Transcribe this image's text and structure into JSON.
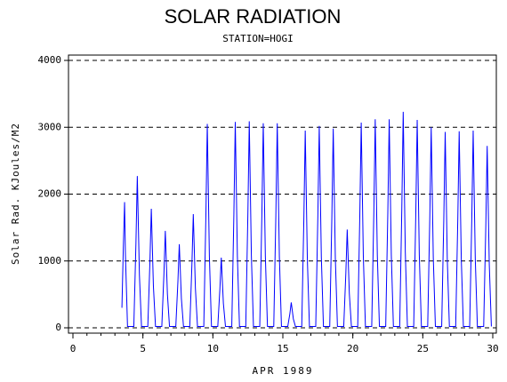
{
  "chart_data": {
    "type": "line",
    "title": "SOLAR RADIATION",
    "subtitle": "STATION=HOGI",
    "x_label": "APR 1989",
    "y_label": "Solar Rad. KJoules/M2",
    "color": "#0000ff",
    "grid": true,
    "xlim": [
      0,
      30
    ],
    "xticks": [
      0,
      5,
      10,
      15,
      20,
      25,
      30
    ],
    "ylim": [
      0,
      4000
    ],
    "yticks": [
      0,
      1000,
      2000,
      3000,
      4000
    ],
    "x": [
      3.5,
      3.6,
      3.69,
      3.75,
      3.9,
      4.35,
      4.5,
      4.6,
      4.75,
      4.9,
      5.35,
      5.5,
      5.6,
      5.75,
      5.9,
      6.35,
      6.5,
      6.6,
      6.75,
      6.9,
      7.35,
      7.5,
      7.6,
      7.75,
      7.9,
      8.35,
      8.5,
      8.6,
      8.75,
      8.9,
      9.35,
      9.5,
      9.6,
      9.75,
      9.9,
      10.35,
      10.5,
      10.6,
      10.75,
      10.9,
      11.35,
      11.5,
      11.6,
      11.75,
      11.9,
      12.35,
      12.5,
      12.6,
      12.75,
      12.9,
      13.35,
      13.5,
      13.6,
      13.75,
      13.9,
      14.35,
      14.5,
      14.6,
      14.75,
      14.9,
      15.35,
      15.5,
      15.6,
      15.75,
      15.9,
      16.35,
      16.5,
      16.6,
      16.75,
      16.9,
      17.35,
      17.5,
      17.6,
      17.75,
      17.9,
      18.35,
      18.5,
      18.6,
      18.75,
      18.9,
      19.35,
      19.5,
      19.6,
      19.75,
      19.9,
      20.35,
      20.5,
      20.6,
      20.75,
      20.9,
      21.35,
      21.5,
      21.6,
      21.75,
      21.9,
      22.35,
      22.5,
      22.6,
      22.75,
      22.9,
      23.35,
      23.5,
      23.6,
      23.75,
      23.9,
      24.35,
      24.5,
      24.6,
      24.75,
      24.9,
      25.35,
      25.5,
      25.6,
      25.75,
      25.9,
      26.35,
      26.5,
      26.6,
      26.75,
      26.9,
      27.35,
      27.5,
      27.6,
      27.75,
      27.9,
      28.35,
      28.5,
      28.6,
      28.75,
      28.9,
      29.35,
      29.5,
      29.6,
      29.75,
      29.9
    ],
    "values": [
      300,
      1200,
      1880,
      1100,
      20,
      20,
      1249,
      2270,
      795,
      20,
      20,
      979,
      1780,
      623,
      20,
      20,
      798,
      1450,
      508,
      20,
      20,
      688,
      1250,
      438,
      20,
      20,
      935,
      1700,
      595,
      20,
      20,
      1678,
      3050,
      1068,
      20,
      20,
      578,
      1050,
      368,
      20,
      20,
      1694,
      3080,
      1078,
      20,
      20,
      1700,
      3090,
      1082,
      20,
      20,
      1683,
      3060,
      1071,
      20,
      20,
      1683,
      3060,
      1071,
      20,
      20,
      209,
      380,
      133,
      20,
      20,
      1623,
      2950,
      1033,
      20,
      20,
      1661,
      3020,
      1057,
      20,
      20,
      1639,
      2980,
      1043,
      20,
      20,
      809,
      1470,
      515,
      20,
      20,
      1689,
      3070,
      1075,
      20,
      20,
      1716,
      3120,
      1092,
      20,
      20,
      1716,
      3120,
      1092,
      20,
      20,
      1777,
      3230,
      1131,
      20,
      20,
      1711,
      3110,
      1089,
      20,
      20,
      1650,
      3000,
      1050,
      20,
      20,
      1612,
      2930,
      1026,
      20,
      20,
      1617,
      2940,
      1029,
      20,
      20,
      1623,
      2950,
      1033,
      20,
      20,
      1496,
      2720,
      952,
      20
    ]
  }
}
